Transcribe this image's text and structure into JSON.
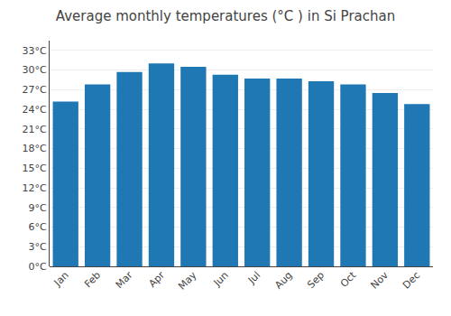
{
  "chart_data": {
    "type": "bar",
    "title": "Average monthly temperatures (°C ) in Si Prachan",
    "categories": [
      "Jan",
      "Feb",
      "Mar",
      "Apr",
      "May",
      "Jun",
      "Jul",
      "Aug",
      "Sep",
      "Oct",
      "Nov",
      "Dec"
    ],
    "values": [
      25.2,
      27.8,
      29.7,
      31.0,
      30.5,
      29.3,
      28.7,
      28.7,
      28.3,
      27.8,
      26.5,
      24.8
    ],
    "ylim": [
      0,
      34.5
    ],
    "yticks": [
      {
        "value": 0,
        "label": "0°C"
      },
      {
        "value": 3,
        "label": "3°C"
      },
      {
        "value": 6,
        "label": "6°C"
      },
      {
        "value": 9,
        "label": "9°C"
      },
      {
        "value": 12,
        "label": "12°C"
      },
      {
        "value": 15,
        "label": "15°C"
      },
      {
        "value": 18,
        "label": "18°C"
      },
      {
        "value": 21,
        "label": "21°C"
      },
      {
        "value": 24,
        "label": "24°C"
      },
      {
        "value": 27,
        "label": "27°C"
      },
      {
        "value": 30,
        "label": "30°C"
      },
      {
        "value": 33,
        "label": "33°C"
      }
    ],
    "grid": true
  }
}
